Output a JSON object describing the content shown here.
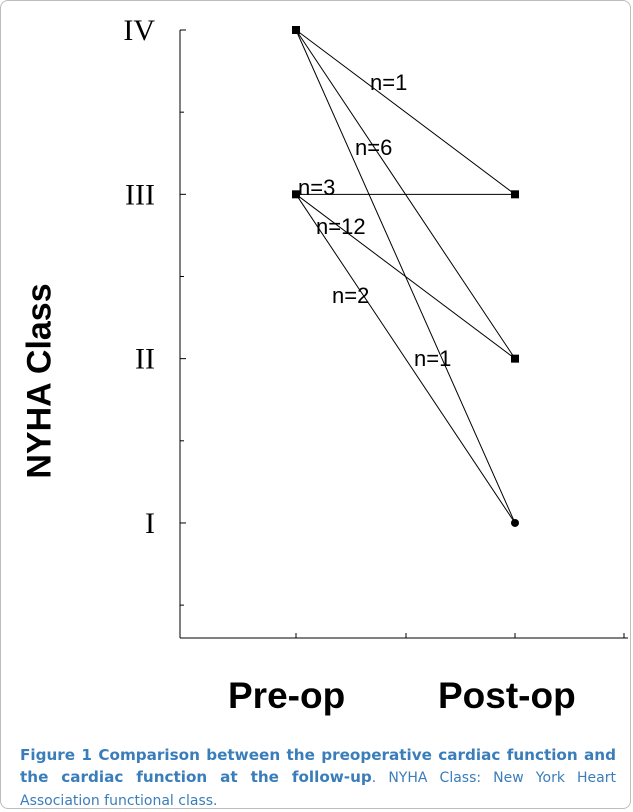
{
  "chart_data": {
    "type": "line",
    "ylabel": "NYHA Class",
    "categories": [
      "Pre-op",
      "Post-op"
    ],
    "y_tick_labels": [
      "IV",
      "III",
      "II",
      "I"
    ],
    "y_levels": [
      4,
      3,
      2,
      1
    ],
    "ylim": [
      0.3,
      4
    ],
    "transitions": [
      {
        "from": 4,
        "to": 3,
        "label": "n=1"
      },
      {
        "from": 4,
        "to": 2,
        "label": "n=6"
      },
      {
        "from": 4,
        "to": 1,
        "label": "n=1"
      },
      {
        "from": 3,
        "to": 3,
        "label": "n=3"
      },
      {
        "from": 3,
        "to": 2,
        "label": "n=12"
      },
      {
        "from": 3,
        "to": 1,
        "label": "n=2"
      }
    ],
    "grid": false
  },
  "caption": {
    "bold_lead": "Figure 1 Comparison between the preoperative cardiac function and the cardiac function at the follow-up",
    "rest": ". NYHA Class: New York Heart Association functional class."
  }
}
